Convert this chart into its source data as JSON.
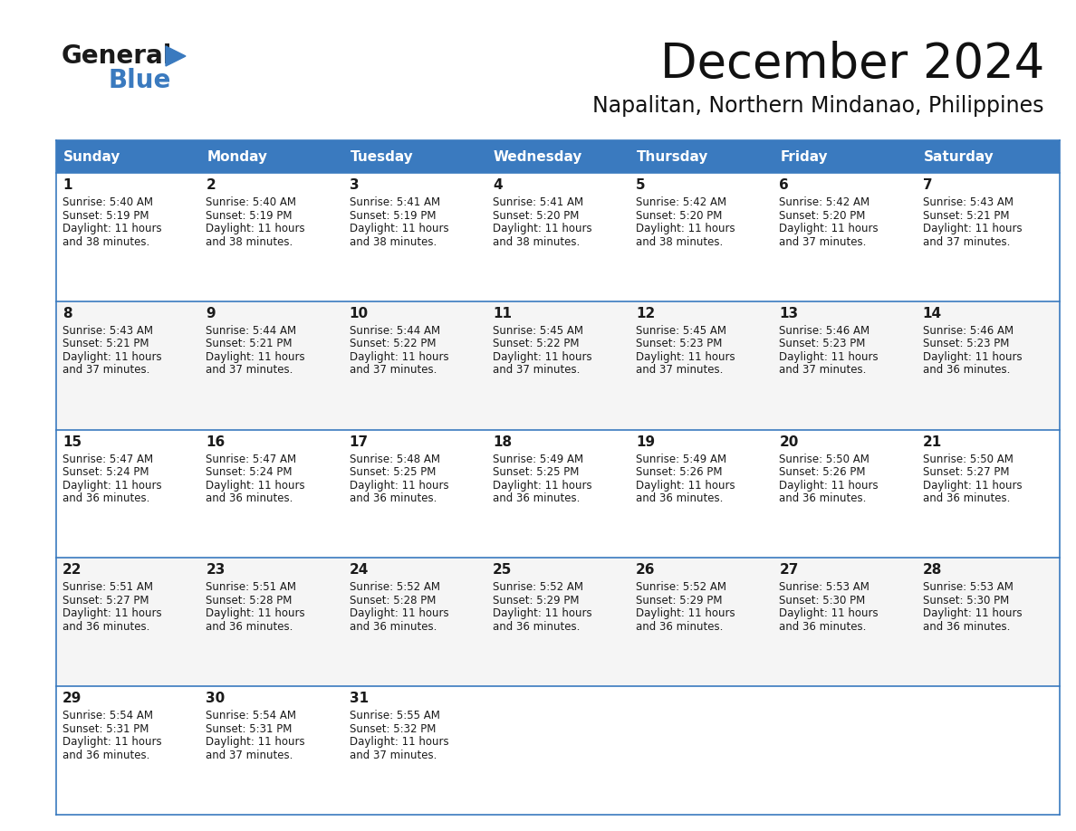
{
  "title": "December 2024",
  "subtitle": "Napalitan, Northern Mindanao, Philippines",
  "header_color": "#3a7abf",
  "header_text_color": "#ffffff",
  "border_color": "#3a7abf",
  "days_of_week": [
    "Sunday",
    "Monday",
    "Tuesday",
    "Wednesday",
    "Thursday",
    "Friday",
    "Saturday"
  ],
  "calendar": [
    [
      {
        "day": 1,
        "sunrise": "5:40 AM",
        "sunset": "5:19 PM",
        "daylight": "11 hours and 38 minutes."
      },
      {
        "day": 2,
        "sunrise": "5:40 AM",
        "sunset": "5:19 PM",
        "daylight": "11 hours and 38 minutes."
      },
      {
        "day": 3,
        "sunrise": "5:41 AM",
        "sunset": "5:19 PM",
        "daylight": "11 hours and 38 minutes."
      },
      {
        "day": 4,
        "sunrise": "5:41 AM",
        "sunset": "5:20 PM",
        "daylight": "11 hours and 38 minutes."
      },
      {
        "day": 5,
        "sunrise": "5:42 AM",
        "sunset": "5:20 PM",
        "daylight": "11 hours and 38 minutes."
      },
      {
        "day": 6,
        "sunrise": "5:42 AM",
        "sunset": "5:20 PM",
        "daylight": "11 hours and 37 minutes."
      },
      {
        "day": 7,
        "sunrise": "5:43 AM",
        "sunset": "5:21 PM",
        "daylight": "11 hours and 37 minutes."
      }
    ],
    [
      {
        "day": 8,
        "sunrise": "5:43 AM",
        "sunset": "5:21 PM",
        "daylight": "11 hours and 37 minutes."
      },
      {
        "day": 9,
        "sunrise": "5:44 AM",
        "sunset": "5:21 PM",
        "daylight": "11 hours and 37 minutes."
      },
      {
        "day": 10,
        "sunrise": "5:44 AM",
        "sunset": "5:22 PM",
        "daylight": "11 hours and 37 minutes."
      },
      {
        "day": 11,
        "sunrise": "5:45 AM",
        "sunset": "5:22 PM",
        "daylight": "11 hours and 37 minutes."
      },
      {
        "day": 12,
        "sunrise": "5:45 AM",
        "sunset": "5:23 PM",
        "daylight": "11 hours and 37 minutes."
      },
      {
        "day": 13,
        "sunrise": "5:46 AM",
        "sunset": "5:23 PM",
        "daylight": "11 hours and 37 minutes."
      },
      {
        "day": 14,
        "sunrise": "5:46 AM",
        "sunset": "5:23 PM",
        "daylight": "11 hours and 36 minutes."
      }
    ],
    [
      {
        "day": 15,
        "sunrise": "5:47 AM",
        "sunset": "5:24 PM",
        "daylight": "11 hours and 36 minutes."
      },
      {
        "day": 16,
        "sunrise": "5:47 AM",
        "sunset": "5:24 PM",
        "daylight": "11 hours and 36 minutes."
      },
      {
        "day": 17,
        "sunrise": "5:48 AM",
        "sunset": "5:25 PM",
        "daylight": "11 hours and 36 minutes."
      },
      {
        "day": 18,
        "sunrise": "5:49 AM",
        "sunset": "5:25 PM",
        "daylight": "11 hours and 36 minutes."
      },
      {
        "day": 19,
        "sunrise": "5:49 AM",
        "sunset": "5:26 PM",
        "daylight": "11 hours and 36 minutes."
      },
      {
        "day": 20,
        "sunrise": "5:50 AM",
        "sunset": "5:26 PM",
        "daylight": "11 hours and 36 minutes."
      },
      {
        "day": 21,
        "sunrise": "5:50 AM",
        "sunset": "5:27 PM",
        "daylight": "11 hours and 36 minutes."
      }
    ],
    [
      {
        "day": 22,
        "sunrise": "5:51 AM",
        "sunset": "5:27 PM",
        "daylight": "11 hours and 36 minutes."
      },
      {
        "day": 23,
        "sunrise": "5:51 AM",
        "sunset": "5:28 PM",
        "daylight": "11 hours and 36 minutes."
      },
      {
        "day": 24,
        "sunrise": "5:52 AM",
        "sunset": "5:28 PM",
        "daylight": "11 hours and 36 minutes."
      },
      {
        "day": 25,
        "sunrise": "5:52 AM",
        "sunset": "5:29 PM",
        "daylight": "11 hours and 36 minutes."
      },
      {
        "day": 26,
        "sunrise": "5:52 AM",
        "sunset": "5:29 PM",
        "daylight": "11 hours and 36 minutes."
      },
      {
        "day": 27,
        "sunrise": "5:53 AM",
        "sunset": "5:30 PM",
        "daylight": "11 hours and 36 minutes."
      },
      {
        "day": 28,
        "sunrise": "5:53 AM",
        "sunset": "5:30 PM",
        "daylight": "11 hours and 36 minutes."
      }
    ],
    [
      {
        "day": 29,
        "sunrise": "5:54 AM",
        "sunset": "5:31 PM",
        "daylight": "11 hours and 36 minutes."
      },
      {
        "day": 30,
        "sunrise": "5:54 AM",
        "sunset": "5:31 PM",
        "daylight": "11 hours and 37 minutes."
      },
      {
        "day": 31,
        "sunrise": "5:55 AM",
        "sunset": "5:32 PM",
        "daylight": "11 hours and 37 minutes."
      },
      null,
      null,
      null,
      null
    ]
  ],
  "logo_text1": "General",
  "logo_text2": "Blue",
  "logo_color1": "#1a1a1a",
  "logo_color2": "#3a7abf",
  "logo_triangle_color": "#3a7abf",
  "title_fontsize": 38,
  "subtitle_fontsize": 17,
  "header_fontsize": 11,
  "day_num_fontsize": 11,
  "cell_text_fontsize": 8.5
}
